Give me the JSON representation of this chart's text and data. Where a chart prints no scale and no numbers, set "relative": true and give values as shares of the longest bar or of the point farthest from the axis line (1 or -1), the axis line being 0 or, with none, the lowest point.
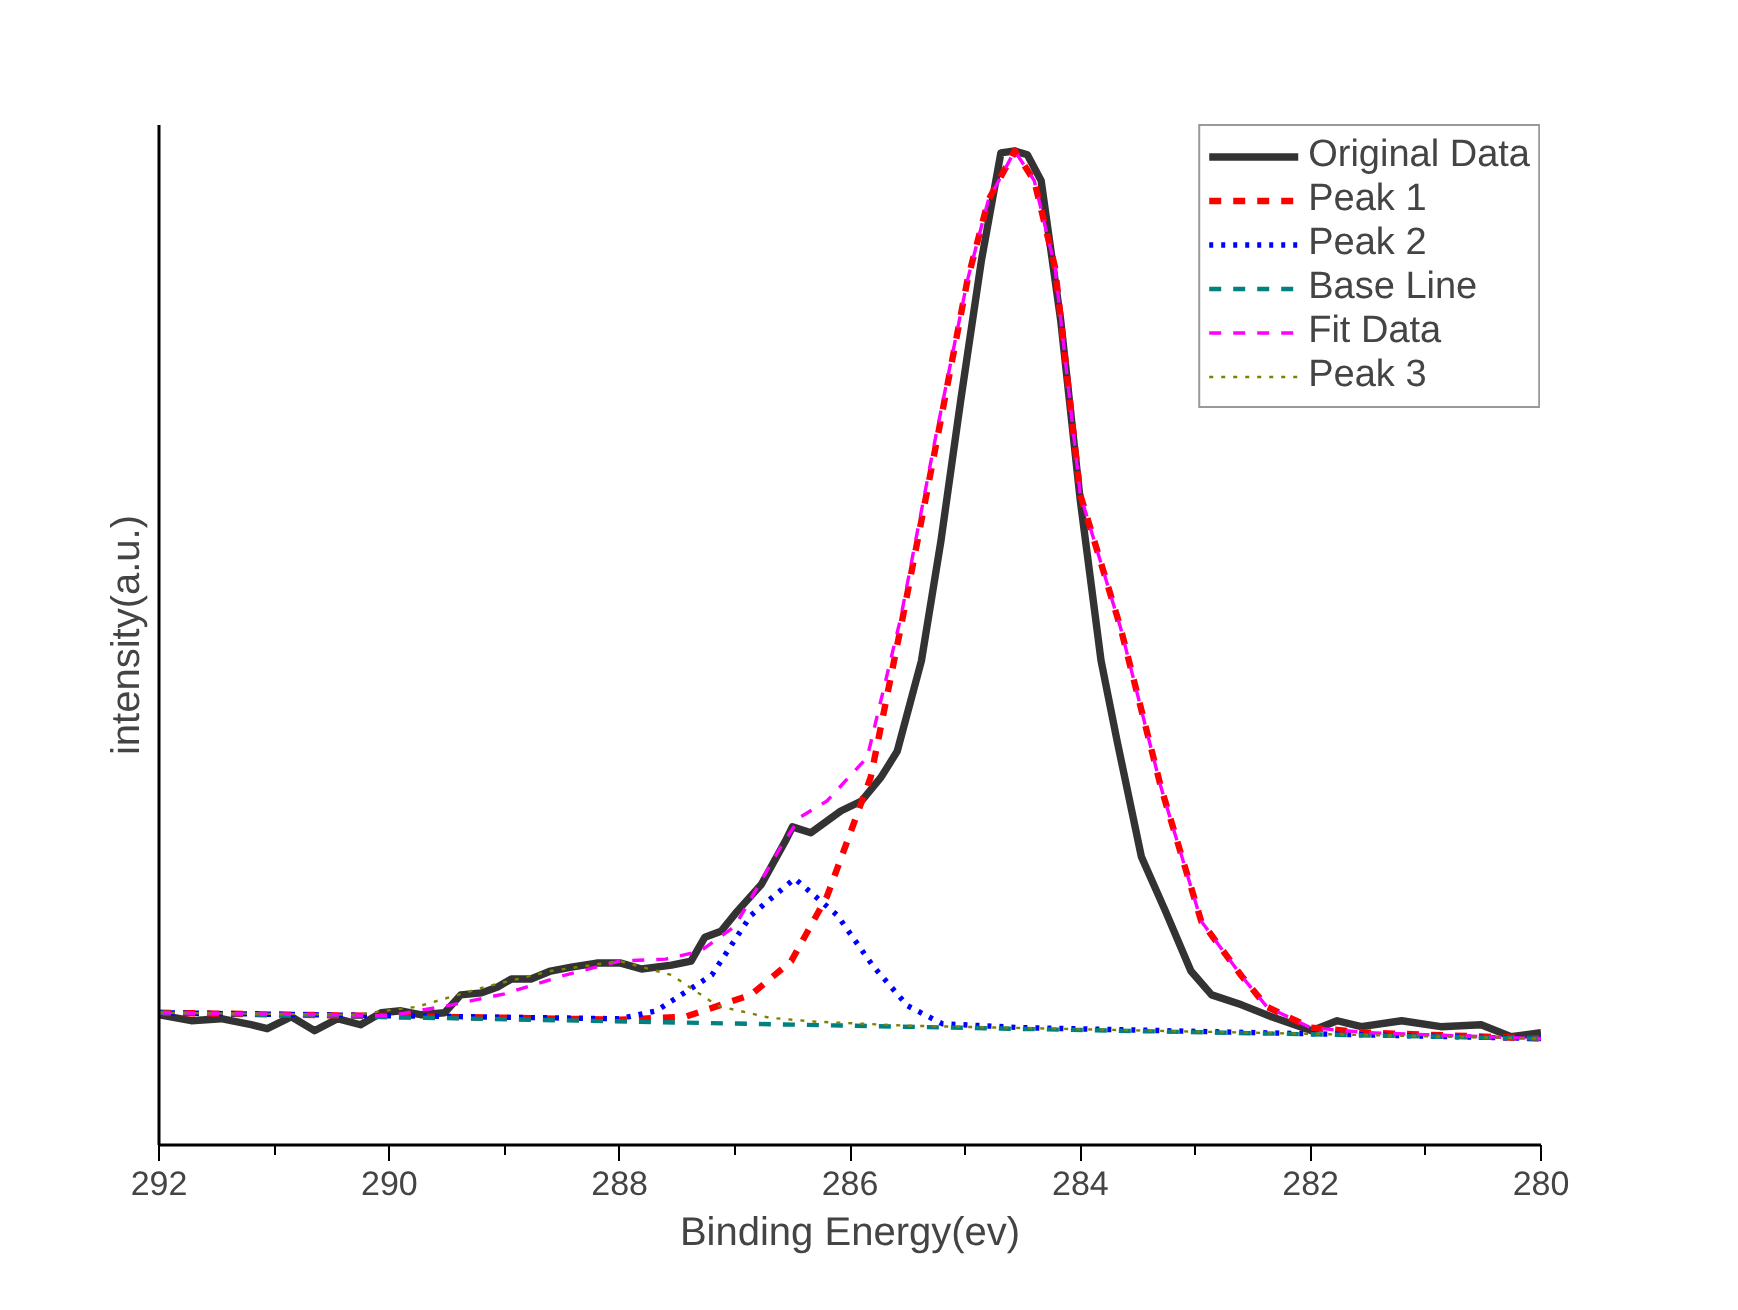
{
  "chart_data": {
    "type": "line",
    "relative": true,
    "xlabel": "Binding Energy(ev)",
    "ylabel": "intensity(a.u.)",
    "xlim": [
      292,
      280
    ],
    "xticks": [
      292,
      {
        "value": 291,
        "label": null
      },
      290,
      {
        "value": 289,
        "label": null
      },
      288,
      {
        "value": 287,
        "label": null
      },
      286,
      {
        "value": 285,
        "label": null
      },
      284,
      {
        "value": 283,
        "label": null
      },
      282,
      {
        "value": 281,
        "label": null
      },
      280
    ],
    "grid": false,
    "legend": "top right",
    "marker": "none",
    "series": [
      {
        "name": "Original Data",
        "color": "#333333",
        "line_style": "solid",
        "x": [
          292,
          291.72,
          291.46,
          291.2,
          291.06,
          290.85,
          290.65,
          290.45,
          290.25,
          290.07,
          289.9,
          289.72,
          289.52,
          289.38,
          289.2,
          289.06,
          288.94,
          288.77,
          288.6,
          288.42,
          288.2,
          287.99,
          287.81,
          287.55,
          287.38,
          287.26,
          287.12,
          286.98,
          286.77,
          286.56,
          286.5,
          286.34,
          286.08,
          285.9,
          285.73,
          285.59,
          285.38,
          285.21,
          285.04,
          284.86,
          284.69,
          284.57,
          284.46,
          284.34,
          284.17,
          284.0,
          283.82,
          283.68,
          283.47,
          283.26,
          283.04,
          282.86,
          282.6,
          282.34,
          281.99,
          281.77,
          281.56,
          281.21,
          280.87,
          280.52,
          280.26,
          280.0
        ],
        "values": [
          0.131,
          0.125,
          0.127,
          0.121,
          0.117,
          0.129,
          0.115,
          0.127,
          0.121,
          0.133,
          0.135,
          0.131,
          0.133,
          0.151,
          0.153,
          0.159,
          0.167,
          0.167,
          0.175,
          0.179,
          0.183,
          0.183,
          0.177,
          0.181,
          0.185,
          0.209,
          0.215,
          0.235,
          0.262,
          0.306,
          0.32,
          0.314,
          0.336,
          0.346,
          0.37,
          0.396,
          0.487,
          0.608,
          0.748,
          0.889,
          0.998,
          1.0,
          0.996,
          0.97,
          0.829,
          0.648,
          0.487,
          0.406,
          0.29,
          0.235,
          0.175,
          0.151,
          0.141,
          0.129,
          0.115,
          0.125,
          0.119,
          0.125,
          0.119,
          0.121,
          0.109,
          0.113
        ]
      },
      {
        "name": "Peak 1",
        "color": "#ff0000",
        "line_style": "dashed",
        "x": [
          292,
          289,
          288,
          287.43,
          286.86,
          286.51,
          286.2,
          285.82,
          285.56,
          285.26,
          284.98,
          284.8,
          284.57,
          284.4,
          284.22,
          284.0,
          283.65,
          283.3,
          282.95,
          282.6,
          282.38,
          282.0,
          281.5,
          281.0,
          280.0
        ],
        "values": [
          0.133,
          0.128,
          0.126,
          0.129,
          0.151,
          0.185,
          0.25,
          0.37,
          0.52,
          0.7,
          0.87,
          0.95,
          1.0,
          0.97,
          0.883,
          0.654,
          0.52,
          0.36,
          0.225,
          0.17,
          0.139,
          0.118,
          0.113,
          0.111,
          0.107
        ]
      },
      {
        "name": "Peak 2",
        "color": "#0000ff",
        "line_style": "dotted",
        "x": [
          292,
          288,
          287.68,
          287.2,
          286.86,
          286.48,
          286.11,
          285.8,
          285.5,
          285.2,
          284.5,
          280
        ],
        "values": [
          0.133,
          0.127,
          0.135,
          0.171,
          0.231,
          0.268,
          0.231,
          0.18,
          0.14,
          0.122,
          0.118,
          0.107
        ]
      },
      {
        "name": "Base Line",
        "color": "#008080",
        "line_style": "dashed",
        "x": [
          292,
          280
        ],
        "values": [
          0.133,
          0.107
        ]
      },
      {
        "name": "Fit Data",
        "color": "#ff00ff",
        "line_style": "dashed",
        "x": [
          292,
          290.5,
          290,
          289.5,
          289,
          288.5,
          288,
          287.6,
          287.3,
          287,
          286.8,
          286.6,
          286.43,
          286.2,
          285.85,
          285.56,
          285.26,
          284.98,
          284.8,
          284.57,
          284.4,
          284.22,
          284.0,
          283.65,
          283.3,
          282.95,
          282.6,
          282.38,
          282.0,
          281.5,
          281.0,
          280.0
        ],
        "values": [
          0.133,
          0.131,
          0.13,
          0.14,
          0.152,
          0.17,
          0.185,
          0.187,
          0.195,
          0.22,
          0.26,
          0.3,
          0.33,
          0.346,
          0.39,
          0.53,
          0.71,
          0.87,
          0.95,
          1.0,
          0.97,
          0.883,
          0.654,
          0.52,
          0.36,
          0.225,
          0.17,
          0.139,
          0.118,
          0.113,
          0.111,
          0.107
        ]
      },
      {
        "name": "Peak 3",
        "color": "#808000",
        "line_style": "dotted",
        "x": [
          292,
          290.3,
          289.76,
          289.17,
          288.6,
          288.0,
          287.55,
          287.15,
          286.7,
          286.29,
          285.5,
          280
        ],
        "values": [
          0.133,
          0.131,
          0.139,
          0.159,
          0.175,
          0.185,
          0.171,
          0.14,
          0.128,
          0.124,
          0.12,
          0.107
        ]
      }
    ]
  }
}
